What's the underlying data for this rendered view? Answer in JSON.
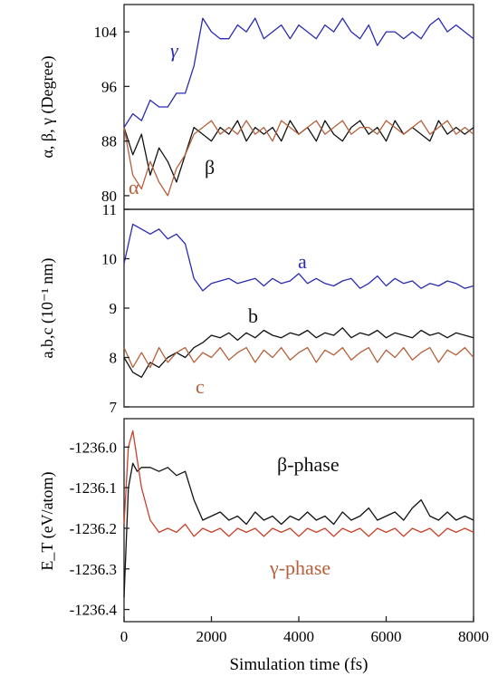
{
  "chart_data": [
    {
      "type": "line",
      "panel": "angles",
      "ylabel": "α, β, γ (Degree)",
      "ylim": [
        78,
        108
      ],
      "yticks": [
        80,
        88,
        96,
        104
      ],
      "xlim": [
        0,
        8000
      ],
      "x": [
        0,
        200,
        400,
        600,
        800,
        1000,
        1200,
        1400,
        1600,
        1800,
        2000,
        2200,
        2400,
        2600,
        2800,
        3000,
        3200,
        3400,
        3600,
        3800,
        4000,
        4200,
        4400,
        4600,
        4800,
        5000,
        5200,
        5400,
        5600,
        5800,
        6000,
        6200,
        6400,
        6600,
        6800,
        7000,
        7200,
        7400,
        7600,
        7800,
        8000
      ],
      "series": [
        {
          "name": "γ",
          "color": "#2b2bb0",
          "values": [
            90,
            92,
            91,
            94,
            93,
            93,
            95,
            95,
            99,
            106,
            104,
            103,
            103,
            105,
            104,
            106,
            103,
            104,
            105,
            103,
            105,
            104,
            103,
            105,
            104,
            106,
            104,
            103,
            105,
            102,
            104,
            104,
            103,
            104,
            103,
            105,
            106,
            104,
            105,
            104,
            103
          ]
        },
        {
          "name": "β",
          "color": "#111111",
          "values": [
            90,
            86,
            89,
            83,
            87,
            85,
            82,
            86,
            90,
            89,
            88,
            90,
            89,
            91,
            88,
            90,
            89,
            90,
            88,
            91,
            89,
            90,
            88,
            91,
            89,
            88,
            90,
            91,
            89,
            90,
            88,
            91,
            89,
            90,
            89,
            88,
            91,
            89,
            90,
            89,
            90
          ]
        },
        {
          "name": "α",
          "color": "#b5603a",
          "values": [
            90,
            83,
            81,
            85,
            82,
            80,
            84,
            86,
            89,
            90,
            91,
            89,
            90,
            89,
            91,
            89,
            90,
            88,
            91,
            90,
            89,
            90,
            91,
            89,
            90,
            91,
            89,
            90,
            90,
            89,
            91,
            90,
            89,
            90,
            91,
            89,
            90,
            91,
            89,
            90,
            89
          ]
        }
      ]
    },
    {
      "type": "line",
      "panel": "lattice",
      "ylabel": "a,b,c (10⁻¹ nm)",
      "ylim": [
        7,
        11
      ],
      "yticks": [
        7,
        8,
        9,
        10,
        11
      ],
      "xlim": [
        0,
        8000
      ],
      "x": [
        0,
        200,
        400,
        600,
        800,
        1000,
        1200,
        1400,
        1600,
        1800,
        2000,
        2200,
        2400,
        2600,
        2800,
        3000,
        3200,
        3400,
        3600,
        3800,
        4000,
        4200,
        4400,
        4600,
        4800,
        5000,
        5200,
        5400,
        5600,
        5800,
        6000,
        6200,
        6400,
        6600,
        6800,
        7000,
        7200,
        7400,
        7600,
        7800,
        8000
      ],
      "series": [
        {
          "name": "a",
          "color": "#2b2bb0",
          "values": [
            9.9,
            10.7,
            10.6,
            10.5,
            10.6,
            10.4,
            10.5,
            10.3,
            9.6,
            9.35,
            9.5,
            9.55,
            9.6,
            9.5,
            9.55,
            9.6,
            9.45,
            9.6,
            9.5,
            9.55,
            9.7,
            9.5,
            9.6,
            9.5,
            9.45,
            9.55,
            9.6,
            9.4,
            9.5,
            9.65,
            9.45,
            9.6,
            9.5,
            9.55,
            9.4,
            9.5,
            9.45,
            9.55,
            9.5,
            9.4,
            9.45
          ]
        },
        {
          "name": "b",
          "color": "#111111",
          "values": [
            8.0,
            7.7,
            7.6,
            7.9,
            7.8,
            8.0,
            8.1,
            8.0,
            8.2,
            8.3,
            8.45,
            8.4,
            8.5,
            8.35,
            8.5,
            8.4,
            8.55,
            8.45,
            8.4,
            8.5,
            8.45,
            8.55,
            8.4,
            8.5,
            8.45,
            8.6,
            8.4,
            8.5,
            8.45,
            8.55,
            8.4,
            8.5,
            8.45,
            8.4,
            8.55,
            8.45,
            8.5,
            8.4,
            8.5,
            8.45,
            8.4
          ]
        },
        {
          "name": "c",
          "color": "#b5603a",
          "values": [
            8.2,
            7.8,
            8.1,
            7.8,
            8.2,
            7.9,
            8.1,
            8.2,
            7.9,
            8.1,
            8.0,
            8.2,
            7.95,
            8.1,
            8.2,
            7.9,
            8.15,
            8.0,
            8.2,
            7.95,
            8.1,
            8.2,
            7.9,
            8.15,
            8.05,
            8.2,
            7.95,
            8.1,
            8.2,
            7.9,
            8.15,
            8.0,
            8.2,
            7.95,
            8.1,
            8.2,
            7.9,
            8.15,
            8.05,
            8.2,
            8.0
          ]
        }
      ]
    },
    {
      "type": "line",
      "panel": "energy",
      "ylabel": "E_T (eV/atom)",
      "ylim": [
        -1236.43,
        -1235.93
      ],
      "yticks": [
        -1236.0,
        -1236.1,
        -1236.2,
        -1236.3,
        -1236.4
      ],
      "ytick_labels": [
        "-1236.0",
        "-1236.1",
        "-1236.2",
        "-1236.3",
        "-1236.4"
      ],
      "xlim": [
        0,
        8000
      ],
      "xticks": [
        0,
        2000,
        4000,
        6000,
        8000
      ],
      "xlabel": "Simulation time (fs)",
      "x": [
        0,
        100,
        200,
        300,
        400,
        600,
        800,
        1000,
        1200,
        1400,
        1600,
        1800,
        2000,
        2200,
        2400,
        2600,
        2800,
        3000,
        3200,
        3400,
        3600,
        3800,
        4000,
        4200,
        4400,
        4600,
        4800,
        5000,
        5200,
        5400,
        5600,
        5800,
        6000,
        6200,
        6400,
        6600,
        6800,
        7000,
        7200,
        7400,
        7600,
        7800,
        8000
      ],
      "series": [
        {
          "name": "β-phase",
          "color": "#111111",
          "values": [
            -1236.37,
            -1236.1,
            -1236.04,
            -1236.06,
            -1236.05,
            -1236.05,
            -1236.06,
            -1236.05,
            -1236.07,
            -1236.06,
            -1236.13,
            -1236.18,
            -1236.17,
            -1236.16,
            -1236.18,
            -1236.17,
            -1236.19,
            -1236.16,
            -1236.18,
            -1236.17,
            -1236.19,
            -1236.17,
            -1236.18,
            -1236.16,
            -1236.18,
            -1236.17,
            -1236.19,
            -1236.16,
            -1236.18,
            -1236.17,
            -1236.15,
            -1236.18,
            -1236.17,
            -1236.16,
            -1236.18,
            -1236.15,
            -1236.13,
            -1236.17,
            -1236.18,
            -1236.16,
            -1236.18,
            -1236.17,
            -1236.18
          ]
        },
        {
          "name": "γ-phase",
          "color": "#c8412a",
          "values": [
            -1236.19,
            -1236.0,
            -1235.96,
            -1236.03,
            -1236.1,
            -1236.18,
            -1236.21,
            -1236.2,
            -1236.21,
            -1236.19,
            -1236.22,
            -1236.2,
            -1236.21,
            -1236.2,
            -1236.22,
            -1236.2,
            -1236.21,
            -1236.2,
            -1236.22,
            -1236.2,
            -1236.21,
            -1236.2,
            -1236.22,
            -1236.2,
            -1236.21,
            -1236.2,
            -1236.22,
            -1236.2,
            -1236.21,
            -1236.2,
            -1236.22,
            -1236.2,
            -1236.21,
            -1236.2,
            -1236.22,
            -1236.2,
            -1236.21,
            -1236.2,
            -1236.22,
            -1236.2,
            -1236.21,
            -1236.2,
            -1236.21
          ]
        }
      ]
    }
  ],
  "annotations": {
    "gamma": "γ",
    "beta": "β",
    "alpha": "α",
    "a": "a",
    "b": "b",
    "c": "c",
    "beta_phase": "β-phase",
    "gamma_phase": "γ-phase"
  }
}
